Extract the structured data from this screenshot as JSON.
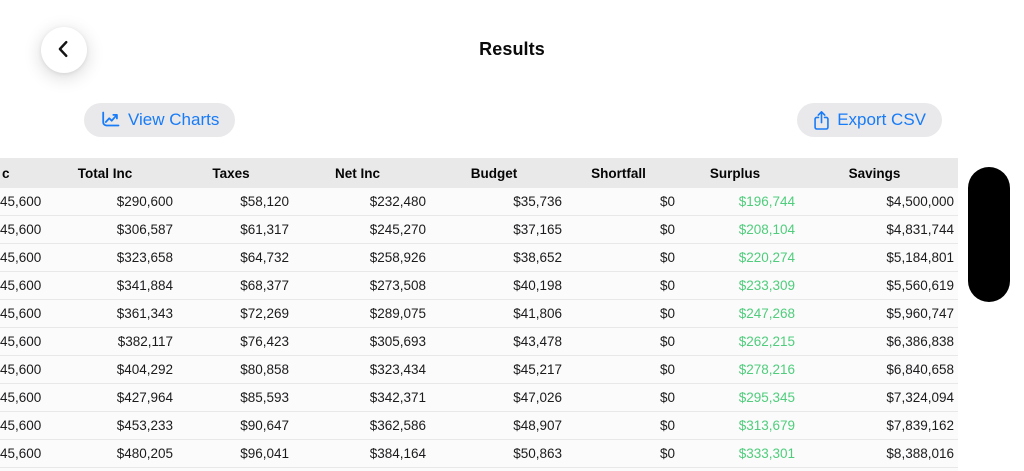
{
  "screen": {
    "title": "Results"
  },
  "toolbar": {
    "view_charts": {
      "label": "View Charts"
    },
    "export_csv": {
      "label": "Export CSV"
    }
  },
  "colors": {
    "accent_blue": "#187bf7",
    "surplus_green": "#4fcd7c",
    "header_bg": "#e9e9e9",
    "row_bg": "#fbfbfb",
    "pill_bg": "#e9e9eb",
    "separator": "#e8e8e8",
    "redaction_black": "#000000"
  },
  "icons": {
    "back": "chevron-left-icon",
    "view_charts": "line-chart-icon",
    "export": "share-icon"
  },
  "table": {
    "columns": [
      {
        "key": "inc",
        "label": "c",
        "align": "left"
      },
      {
        "key": "total_inc",
        "label": "Total Inc"
      },
      {
        "key": "taxes",
        "label": "Taxes"
      },
      {
        "key": "net_inc",
        "label": "Net Inc"
      },
      {
        "key": "budget",
        "label": "Budget"
      },
      {
        "key": "shortfall",
        "label": "Shortfall"
      },
      {
        "key": "surplus",
        "label": "Surplus"
      },
      {
        "key": "savings",
        "label": "Savings"
      }
    ],
    "surplus_col": 6,
    "rows": [
      [
        "45,600",
        "$290,600",
        "$58,120",
        "$232,480",
        "$35,736",
        "$0",
        "$196,744",
        "$4,500,000"
      ],
      [
        "45,600",
        "$306,587",
        "$61,317",
        "$245,270",
        "$37,165",
        "$0",
        "$208,104",
        "$4,831,744"
      ],
      [
        "45,600",
        "$323,658",
        "$64,732",
        "$258,926",
        "$38,652",
        "$0",
        "$220,274",
        "$5,184,801"
      ],
      [
        "45,600",
        "$341,884",
        "$68,377",
        "$273,508",
        "$40,198",
        "$0",
        "$233,309",
        "$5,560,619"
      ],
      [
        "45,600",
        "$361,343",
        "$72,269",
        "$289,075",
        "$41,806",
        "$0",
        "$247,268",
        "$5,960,747"
      ],
      [
        "45,600",
        "$382,117",
        "$76,423",
        "$305,693",
        "$43,478",
        "$0",
        "$262,215",
        "$6,386,838"
      ],
      [
        "45,600",
        "$404,292",
        "$80,858",
        "$323,434",
        "$45,217",
        "$0",
        "$278,216",
        "$6,840,658"
      ],
      [
        "45,600",
        "$427,964",
        "$85,593",
        "$342,371",
        "$47,026",
        "$0",
        "$295,345",
        "$7,324,094"
      ],
      [
        "45,600",
        "$453,233",
        "$90,647",
        "$362,586",
        "$48,907",
        "$0",
        "$313,679",
        "$7,839,162"
      ],
      [
        "45,600",
        "$480,205",
        "$96,041",
        "$384,164",
        "$50,863",
        "$0",
        "$333,301",
        "$8,388,016"
      ]
    ]
  }
}
